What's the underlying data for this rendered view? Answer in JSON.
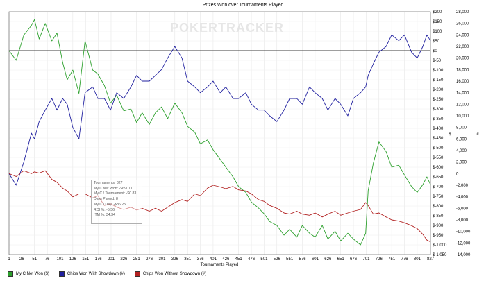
{
  "watermark": "POKERTRACKER",
  "stats": {
    "lines": [
      "Tournaments: 827",
      "My C Net Won: -$690.00",
      "My C / Tournament: -$0.83",
      "Days Played: 8",
      "My C / Day: -$86.25",
      "ROI %: -5.56",
      "ITM %: 34.34"
    ]
  },
  "legend": {
    "items": [
      {
        "label": "My C Net Won ($)",
        "color": "#2ca02c"
      },
      {
        "label": "Chips Won With Showdown (#)",
        "color": "#1f1f9f"
      },
      {
        "label": "Chips Won Without Showdown (#)",
        "color": "#b22222"
      }
    ]
  },
  "chart_data": {
    "type": "line",
    "title": "Prizes Won over Tournaments Played",
    "xlabel": "Tournaments Played",
    "ylabel_right": "#",
    "ylabel_mid": "$",
    "xlim": [
      1,
      827
    ],
    "xticks": [
      1,
      26,
      51,
      76,
      101,
      126,
      151,
      176,
      201,
      226,
      251,
      276,
      301,
      326,
      351,
      376,
      401,
      426,
      451,
      476,
      501,
      526,
      551,
      576,
      601,
      626,
      651,
      676,
      701,
      726,
      751,
      776,
      801,
      827
    ],
    "y_dollar": {
      "lim": [
        -1050,
        200
      ],
      "ticks": [
        200,
        150,
        100,
        50,
        0,
        -50,
        -100,
        -150,
        -200,
        -250,
        -300,
        -350,
        -400,
        -450,
        -500,
        -550,
        -600,
        -650,
        -700,
        -750,
        -800,
        -850,
        -900,
        -950,
        -1000,
        -1050
      ],
      "tick_labels": [
        "$200",
        "$150",
        "$100",
        "$50",
        "$0",
        "$-50",
        "$-100",
        "$-150",
        "$-200",
        "$-250",
        "$-300",
        "$-350",
        "$-400",
        "$-450",
        "$-500",
        "$-550",
        "$-600",
        "$-650",
        "$-700",
        "$-750",
        "$-800",
        "$-850",
        "$-900",
        "$-950",
        "$-1,000",
        "$-1,050"
      ]
    },
    "y_chips": {
      "lim": [
        -14000,
        28000
      ],
      "ticks": [
        28000,
        26000,
        24000,
        22000,
        20000,
        18000,
        16000,
        14000,
        12000,
        10000,
        8000,
        6000,
        4000,
        2000,
        0,
        -2000,
        -4000,
        -6000,
        -8000,
        -10000,
        -12000,
        -14000
      ],
      "tick_labels": [
        "28,000",
        "26,000",
        "24,000",
        "22,000",
        "20,000",
        "18,000",
        "16,000",
        "14,000",
        "12,000",
        "10,000",
        "8,000",
        "6,000",
        "4,000",
        "2,000",
        "0",
        "-2,000",
        "-4,000",
        "-6,000",
        "-8,000",
        "-10,000",
        "-12,000",
        "-14,000"
      ]
    },
    "series": [
      {
        "name": "My C Net Won ($)",
        "axis": "dollar",
        "color": "#2ca02c",
        "x": [
          1,
          15,
          30,
          45,
          51,
          60,
          72,
          85,
          95,
          106,
          115,
          126,
          138,
          150,
          165,
          175,
          188,
          200,
          212,
          226,
          240,
          251,
          262,
          276,
          288,
          300,
          312,
          326,
          340,
          351,
          365,
          376,
          390,
          401,
          415,
          426,
          440,
          451,
          465,
          476,
          490,
          501,
          512,
          526,
          540,
          551,
          565,
          576,
          590,
          601,
          615,
          626,
          640,
          651,
          665,
          676,
          690,
          700,
          705,
          715,
          726,
          740,
          751,
          765,
          776,
          790,
          801,
          812,
          820,
          827
        ],
        "y": [
          0,
          -50,
          80,
          130,
          160,
          60,
          140,
          50,
          90,
          -60,
          -150,
          -100,
          -220,
          50,
          -100,
          -120,
          -180,
          -270,
          -230,
          -310,
          -300,
          -370,
          -320,
          -380,
          -320,
          -290,
          -350,
          -270,
          -320,
          -390,
          -420,
          -480,
          -460,
          -510,
          -560,
          -600,
          -650,
          -700,
          -730,
          -780,
          -810,
          -840,
          -880,
          -900,
          -950,
          -920,
          -960,
          -900,
          -940,
          -960,
          -900,
          -970,
          -930,
          -980,
          -940,
          -970,
          -1000,
          -940,
          -720,
          -580,
          -470,
          -520,
          -600,
          -590,
          -640,
          -700,
          -730,
          -690,
          -650,
          -690
        ]
      },
      {
        "name": "Chips Won With Showdown (#)",
        "axis": "chips",
        "color": "#1f1f9f",
        "x": [
          1,
          15,
          30,
          45,
          51,
          60,
          72,
          85,
          95,
          106,
          115,
          126,
          138,
          150,
          165,
          175,
          188,
          200,
          212,
          226,
          240,
          251,
          262,
          276,
          288,
          300,
          312,
          326,
          340,
          351,
          365,
          376,
          390,
          401,
          415,
          426,
          440,
          451,
          465,
          476,
          490,
          501,
          512,
          526,
          540,
          551,
          565,
          576,
          590,
          601,
          615,
          626,
          640,
          651,
          665,
          676,
          690,
          700,
          705,
          715,
          726,
          740,
          751,
          765,
          776,
          790,
          801,
          812,
          820,
          827
        ],
        "y": [
          0,
          -2000,
          2000,
          7000,
          6000,
          9000,
          11000,
          13000,
          11000,
          13000,
          12000,
          8000,
          6000,
          14000,
          15000,
          13000,
          13000,
          11000,
          14000,
          13000,
          15000,
          17000,
          16000,
          16000,
          17000,
          18000,
          20000,
          22000,
          20000,
          16000,
          15000,
          14000,
          15000,
          16000,
          14000,
          15000,
          13000,
          13000,
          14000,
          12000,
          11000,
          11000,
          10000,
          9000,
          11000,
          13000,
          13000,
          12000,
          15000,
          14000,
          13000,
          11000,
          13000,
          12000,
          10000,
          13000,
          14000,
          15000,
          17000,
          19000,
          21000,
          22000,
          24000,
          23000,
          24000,
          21000,
          20000,
          22000,
          24000,
          23000
        ]
      },
      {
        "name": "Chips Won Without Showdown (#)",
        "axis": "chips",
        "color": "#b22222",
        "x": [
          1,
          15,
          30,
          45,
          51,
          60,
          72,
          85,
          95,
          106,
          115,
          126,
          138,
          150,
          165,
          175,
          188,
          200,
          212,
          226,
          240,
          251,
          262,
          276,
          288,
          300,
          312,
          326,
          340,
          351,
          365,
          376,
          390,
          401,
          415,
          426,
          440,
          451,
          465,
          476,
          490,
          501,
          512,
          526,
          540,
          551,
          565,
          576,
          590,
          601,
          615,
          626,
          640,
          651,
          665,
          676,
          690,
          700,
          705,
          715,
          726,
          740,
          751,
          765,
          776,
          790,
          801,
          812,
          820,
          827
        ],
        "y": [
          0,
          -500,
          500,
          0,
          300,
          100,
          500,
          -1000,
          -1500,
          -2500,
          -3000,
          -4000,
          -3500,
          -3500,
          -4200,
          -3800,
          -5500,
          -5200,
          -5800,
          -6200,
          -5800,
          -6300,
          -6000,
          -6500,
          -6000,
          -6500,
          -5800,
          -5000,
          -4500,
          -4800,
          -3500,
          -3800,
          -2500,
          -2000,
          -2300,
          -2600,
          -2200,
          -2800,
          -3000,
          -3500,
          -4500,
          -4800,
          -5500,
          -6000,
          -6800,
          -7000,
          -6500,
          -7000,
          -7200,
          -6800,
          -7500,
          -7000,
          -6500,
          -7200,
          -6800,
          -6500,
          -6200,
          -5000,
          -5500,
          -7000,
          -6800,
          -7500,
          -8000,
          -8200,
          -8500,
          -9000,
          -9500,
          -10500,
          -11500,
          -11800
        ]
      }
    ]
  }
}
